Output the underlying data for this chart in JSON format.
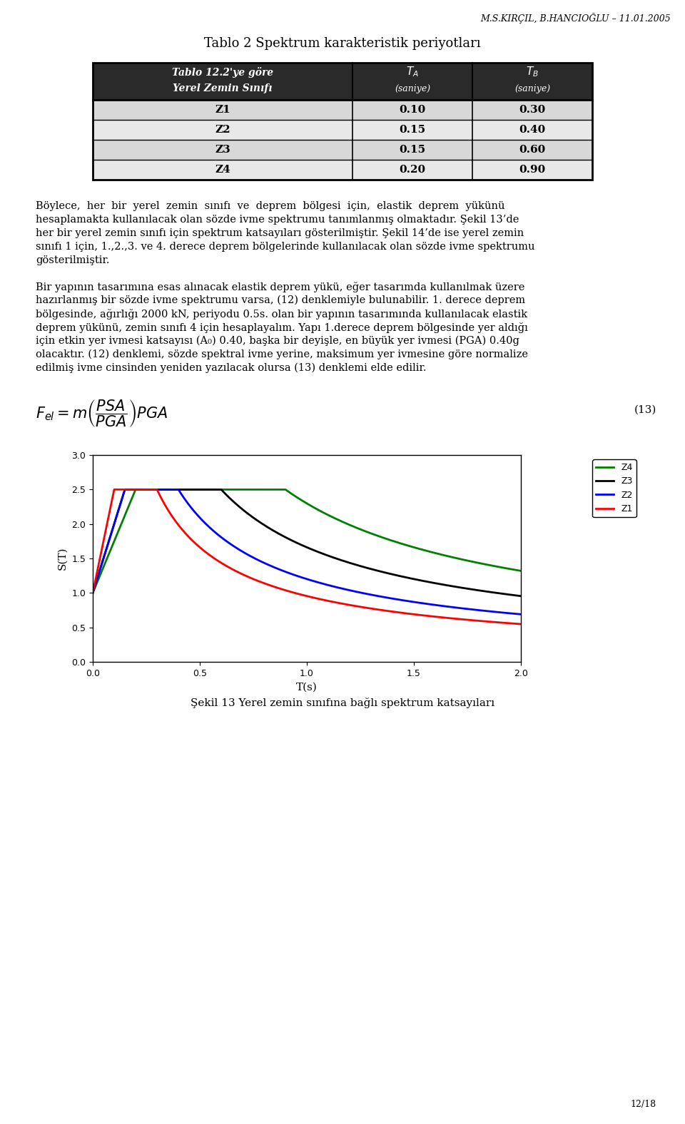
{
  "header_text": "M.S.KIRÇIL, B.HANCIOĞLU – 11.01.2005",
  "table_title": "Tablo 2 Spektrum karakteristik periyotları",
  "table_col1_header_line1": "Tablo 12.2'ye göre",
  "table_col1_header_line2": "Yerel Zemin Sınıfı",
  "table_rows": [
    [
      "Z1",
      "0.10",
      "0.30"
    ],
    [
      "Z2",
      "0.15",
      "0.40"
    ],
    [
      "Z3",
      "0.15",
      "0.60"
    ],
    [
      "Z4",
      "0.20",
      "0.90"
    ]
  ],
  "paragraph1_lines": [
    "Böylece,  her  bir  yerel  zemin  sınıfı  ve  deprem  bölgesi  için,  elastik  deprem  yükünü",
    "hesaplamakta kullanılacak olan sözde ivme spektrumu tanımlanmış olmaktadır. Şekil 13’de",
    "her bir yerel zemin sınıfı için spektrum katsayıları gösterilmiştir. Şekil 14’de ise yerel zemin",
    "sınıfı 1 için, 1.,2.,3. ve 4. derece deprem bölgelerinde kullanılacak olan sözde ivme spektrumu",
    "gösterilmiştir."
  ],
  "paragraph2_lines": [
    "Bir yapının tasarımına esas alınacak elastik deprem yükü, eğer tasarımda kullanılmak üzere",
    "hazırlanmış bir sözde ivme spektrumu varsa, (12) denklemiyle bulunabilir. 1. derece deprem",
    "bölgesinde, ağırlığı 2000 kN, periyodu 0.5s. olan bir yapının tasarımında kullanılacak elastik",
    "deprem yükünü, zemin sınıfı 4 için hesaplayalım. Yapı 1.derece deprem bölgesinde yer aldığı",
    "için etkin yer ivmesi katsayısı (A₀) 0.40, başka bir deyişle, en büyük yer ivmesi (PGA) 0.40g",
    "olacaktır. (12) denklemi, sözde spektral ivme yerine, maksimum yer ivmesine göre normalize",
    "edilmiş ivme cinsinden yeniden yazılacak olursa (13) denklemi elde edilir."
  ],
  "formula_number": "(13)",
  "chart_xlabel": "T(s)",
  "chart_ylabel": "S(T)",
  "zone_params": {
    "Z1": {
      "TA": 0.1,
      "TB": 0.3,
      "color": "#FF0000"
    },
    "Z2": {
      "TA": 0.15,
      "TB": 0.4,
      "color": "#0000FF"
    },
    "Z3": {
      "TA": 0.15,
      "TB": 0.6,
      "color": "#000000"
    },
    "Z4": {
      "TA": 0.2,
      "TB": 0.9,
      "color": "#008000"
    }
  },
  "S_max": 2.5,
  "S_min_T0": 1.0,
  "T_max": 2.0,
  "figure_caption": "Şekil 13 Yerel zemin sınıfına bağlı spektrum katsayıları",
  "page_number": "12/18",
  "background_color": "#ffffff"
}
